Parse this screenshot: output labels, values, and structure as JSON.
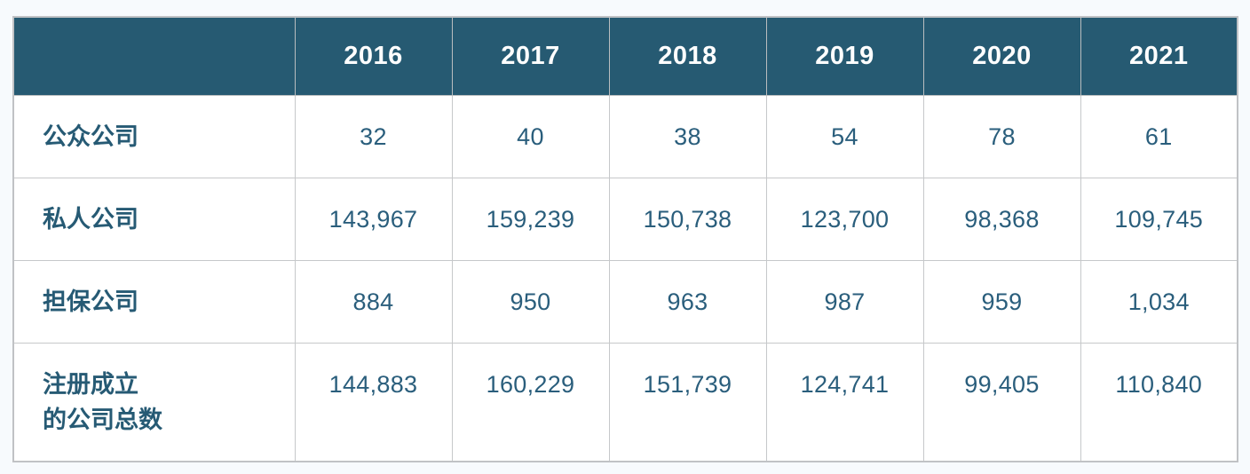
{
  "colors": {
    "header_bg": "#265a72",
    "header_text": "#ffffff",
    "body_text": "#2a5e7c",
    "label_text": "#265a74",
    "grid_line": "#c6c8ca",
    "outer_border": "#c0c2c5",
    "page_bg": "#f7fafd",
    "cell_bg": "#ffffff"
  },
  "table": {
    "header": {
      "corner": "",
      "years": [
        "2016",
        "2017",
        "2018",
        "2019",
        "2020",
        "2021"
      ]
    },
    "rows": [
      {
        "label": "公众公司",
        "values": [
          "32",
          "40",
          "38",
          "54",
          "78",
          "61"
        ]
      },
      {
        "label": "私人公司",
        "values": [
          "143,967",
          "159,239",
          "150,738",
          "123,700",
          "98,368",
          "109,745"
        ]
      },
      {
        "label": "担保公司",
        "values": [
          "884",
          "950",
          "963",
          "987",
          "959",
          "1,034"
        ]
      },
      {
        "label": "注册成立\n的公司总数",
        "values": [
          "144,883",
          "160,229",
          "151,739",
          "124,741",
          "99,405",
          "110,840"
        ]
      }
    ]
  },
  "chart_data": {
    "type": "table",
    "title": "",
    "categories": [
      "2016",
      "2017",
      "2018",
      "2019",
      "2020",
      "2021"
    ],
    "series": [
      {
        "name": "公众公司",
        "values": [
          32,
          40,
          38,
          54,
          78,
          61
        ]
      },
      {
        "name": "私人公司",
        "values": [
          143967,
          159239,
          150738,
          123700,
          98368,
          109745
        ]
      },
      {
        "name": "担保公司",
        "values": [
          884,
          950,
          963,
          987,
          959,
          1034
        ]
      },
      {
        "name": "注册成立的公司总数",
        "values": [
          144883,
          160229,
          151739,
          124741,
          99405,
          110840
        ]
      }
    ]
  }
}
